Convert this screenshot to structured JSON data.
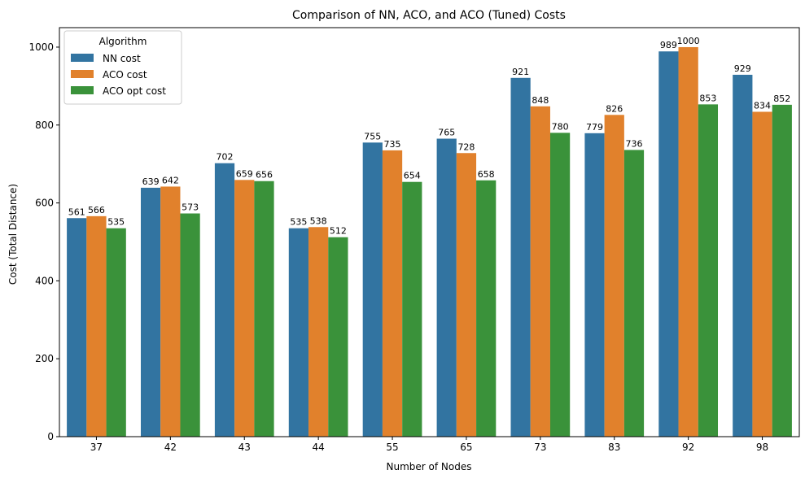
{
  "chart_data": {
    "type": "bar",
    "title": "Comparison of NN, ACO, and ACO (Tuned) Costs",
    "xlabel": "Number of Nodes",
    "ylabel": "Cost (Total Distance)",
    "ylim": [
      0,
      1050
    ],
    "yticks": [
      0,
      200,
      400,
      600,
      800,
      1000
    ],
    "grid": false,
    "legend": {
      "title": "Algorithm",
      "placement": "top-left"
    },
    "categories": [
      "37",
      "42",
      "43",
      "44",
      "55",
      "65",
      "73",
      "83",
      "92",
      "98"
    ],
    "series": [
      {
        "name": "NN cost",
        "color": "#3274a1",
        "values": [
          561,
          639,
          702,
          535,
          755,
          765,
          921,
          779,
          989,
          929
        ]
      },
      {
        "name": "ACO cost",
        "color": "#e1812c",
        "values": [
          566,
          642,
          659,
          538,
          735,
          728,
          848,
          826,
          1000,
          834
        ]
      },
      {
        "name": "ACO opt cost",
        "color": "#3a923a",
        "values": [
          535,
          573,
          656,
          512,
          654,
          658,
          780,
          736,
          853,
          852
        ]
      }
    ]
  }
}
